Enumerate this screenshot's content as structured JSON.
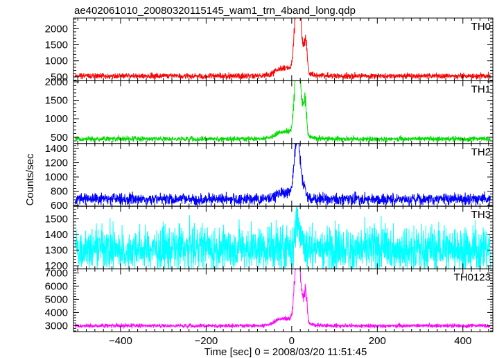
{
  "chart_data": {
    "type": "line",
    "title": "ae402061010_20080320115145_wam1_trn_4band_long.qdp",
    "xlabel": "Time [sec] 0 = 2008/03/20 11:51:45",
    "ylabel": "Counts/sec",
    "xlim": [
      -510,
      470
    ],
    "x_ticks": [
      -400,
      -200,
      0,
      200,
      400
    ],
    "x_tick_labels": [
      "−400",
      "−200",
      "0",
      "200",
      "400"
    ],
    "grid": false,
    "legend": "panel labels top-right",
    "panels": [
      {
        "name": "TH0",
        "color": "#ff0000",
        "ylim": [
          380,
          2330
        ],
        "y_ticks": [
          500,
          1000,
          1500,
          2000
        ],
        "y_tick_labels": [
          "500",
          "1000",
          "1500",
          "2000"
        ],
        "baseline": 530,
        "noise": 45,
        "burst": [
          {
            "t": -30,
            "amp": 90,
            "w": 12
          },
          {
            "t": 8,
            "amp": 1100,
            "w": 4
          },
          {
            "t": 12,
            "amp": 1350,
            "w": 3
          },
          {
            "t": 18,
            "amp": 1750,
            "w": 3
          },
          {
            "t": 24,
            "amp": 900,
            "w": 4
          },
          {
            "t": 33,
            "amp": 1000,
            "w": 3
          },
          {
            "t": 0,
            "amp": 250,
            "w": 25
          }
        ]
      },
      {
        "name": "TH1",
        "color": "#00dd00",
        "ylim": [
          330,
          2030
        ],
        "y_ticks": [
          500,
          1000,
          1500,
          2000
        ],
        "y_tick_labels": [
          "500",
          "1000",
          "1500",
          "2000"
        ],
        "baseline": 455,
        "noise": 35,
        "burst": [
          {
            "t": -30,
            "amp": 70,
            "w": 12
          },
          {
            "t": 8,
            "amp": 1100,
            "w": 4
          },
          {
            "t": 13,
            "amp": 1400,
            "w": 3
          },
          {
            "t": 18,
            "amp": 1450,
            "w": 3
          },
          {
            "t": 25,
            "amp": 700,
            "w": 4
          },
          {
            "t": 32,
            "amp": 800,
            "w": 3
          },
          {
            "t": 0,
            "amp": 200,
            "w": 25
          }
        ]
      },
      {
        "name": "TH2",
        "color": "#0000ff",
        "ylim": [
          590,
          1470
        ],
        "y_ticks": [
          600,
          800,
          1000,
          1200,
          1400
        ],
        "y_tick_labels": [
          "600",
          "800",
          "1000",
          "1200",
          "1400"
        ],
        "baseline": 690,
        "noise": 40,
        "burst": [
          {
            "t": -35,
            "amp": 40,
            "w": 12
          },
          {
            "t": 8,
            "amp": 500,
            "w": 4
          },
          {
            "t": 14,
            "amp": 700,
            "w": 3
          },
          {
            "t": 20,
            "amp": 350,
            "w": 3
          },
          {
            "t": 28,
            "amp": 180,
            "w": 4
          },
          {
            "t": 0,
            "amp": 100,
            "w": 20
          }
        ]
      },
      {
        "name": "TH3",
        "color": "#00ffff",
        "ylim": [
          1180,
          1580
        ],
        "y_ticks": [
          1200,
          1300,
          1400,
          1500
        ],
        "y_tick_labels": [
          "1200",
          "1300",
          "1400",
          "1500"
        ],
        "baseline": 1310,
        "noise": 75,
        "burst": [
          {
            "t": 12,
            "amp": 160,
            "w": 4
          },
          {
            "t": 20,
            "amp": 90,
            "w": 4
          }
        ]
      },
      {
        "name": "TH0123",
        "color": "#ff00ff",
        "ylim": [
          2550,
          7300
        ],
        "y_ticks": [
          3000,
          4000,
          5000,
          6000,
          7000
        ],
        "y_tick_labels": [
          "3000",
          "4000",
          "5000",
          "6000",
          "7000"
        ],
        "baseline": 3000,
        "noise": 75,
        "burst": [
          {
            "t": -30,
            "amp": 250,
            "w": 12
          },
          {
            "t": 8,
            "amp": 2800,
            "w": 4
          },
          {
            "t": 13,
            "amp": 3600,
            "w": 3
          },
          {
            "t": 18,
            "amp": 3500,
            "w": 3
          },
          {
            "t": 25,
            "amp": 1800,
            "w": 4
          },
          {
            "t": 33,
            "amp": 2300,
            "w": 3
          },
          {
            "t": 0,
            "amp": 500,
            "w": 25
          }
        ]
      }
    ]
  }
}
